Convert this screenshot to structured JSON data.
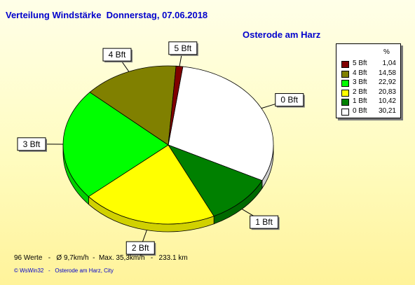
{
  "title": "Verteilung Windstärke  Donnerstag, 07.06.2018",
  "subtitle": "Osterode am Harz",
  "legend": {
    "header": "%",
    "items": [
      {
        "name": "5 Bft",
        "value": "1,04",
        "color": "#800000"
      },
      {
        "name": "4 Bft",
        "value": "14,58",
        "color": "#808000"
      },
      {
        "name": "3 Bft",
        "value": "22,92",
        "color": "#00ff00"
      },
      {
        "name": "2 Bft",
        "value": "20,83",
        "color": "#ffff00"
      },
      {
        "name": "1 Bft",
        "value": "10,42",
        "color": "#008000"
      },
      {
        "name": "0 Bft",
        "value": "30,21",
        "color": "#ffffff"
      }
    ]
  },
  "footer": "96 Werte   -   Ø 9,7km/h  -  Max. 35,3km/h   -   233.1 km",
  "copyright": "© WsWin32   -   Osterode am Harz, City",
  "chart_data": {
    "type": "pie",
    "title": "Verteilung Windstärke  Donnerstag, 07.06.2018",
    "subtitle": "Osterode am Harz",
    "unit": "%",
    "legend_position": "right",
    "slices": [
      {
        "label": "0 Bft",
        "value": 30.21,
        "color": "#ffffff"
      },
      {
        "label": "1 Bft",
        "value": 10.42,
        "color": "#008000"
      },
      {
        "label": "2 Bft",
        "value": 20.83,
        "color": "#ffff00"
      },
      {
        "label": "3 Bft",
        "value": 22.92,
        "color": "#00ff00"
      },
      {
        "label": "4 Bft",
        "value": 14.58,
        "color": "#808000"
      },
      {
        "label": "5 Bft",
        "value": 1.04,
        "color": "#800000"
      }
    ]
  }
}
